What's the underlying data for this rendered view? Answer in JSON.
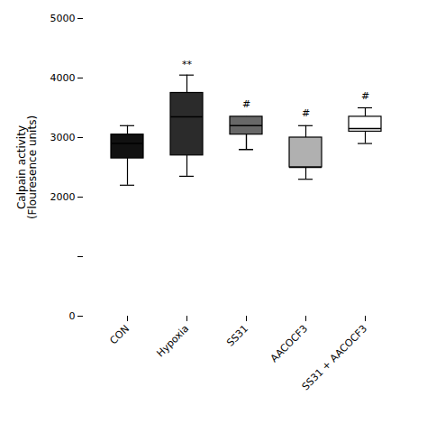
{
  "chart_data": {
    "type": "box",
    "categories": [
      "CON",
      "Hypoxia",
      "SS31",
      "AACOCF3",
      "SS31 + AACOCF3"
    ],
    "median": [
      2900,
      3350,
      3200,
      2500,
      3150
    ],
    "q1": [
      2650,
      2700,
      3050,
      2500,
      3100
    ],
    "q3": [
      3050,
      3750,
      3350,
      3000,
      3350
    ],
    "whisker_low": [
      2200,
      2350,
      2800,
      2300,
      2900
    ],
    "whisker_high": [
      3200,
      4050,
      2800,
      3200,
      3500
    ],
    "colors": [
      "#111111",
      "#2b2b2b",
      "#686868",
      "#b0b0b0",
      "#ffffff"
    ],
    "annotations": [
      {
        "category": "Hypoxia",
        "y": 4150,
        "text": "**"
      },
      {
        "category": "SS31",
        "y": 3480,
        "text": "#"
      },
      {
        "category": "AACOCF3",
        "y": 3330,
        "text": "#"
      },
      {
        "category": "SS31 + AACOCF3",
        "y": 3620,
        "text": "#"
      }
    ],
    "ylabel": "Calpain activity\n(Flouresence units)",
    "ylim": [
      0,
      5000
    ],
    "yticks": [
      0,
      {
        "value": 1000,
        "label": ""
      },
      2000,
      3000,
      4000,
      5000
    ],
    "grid": false
  }
}
